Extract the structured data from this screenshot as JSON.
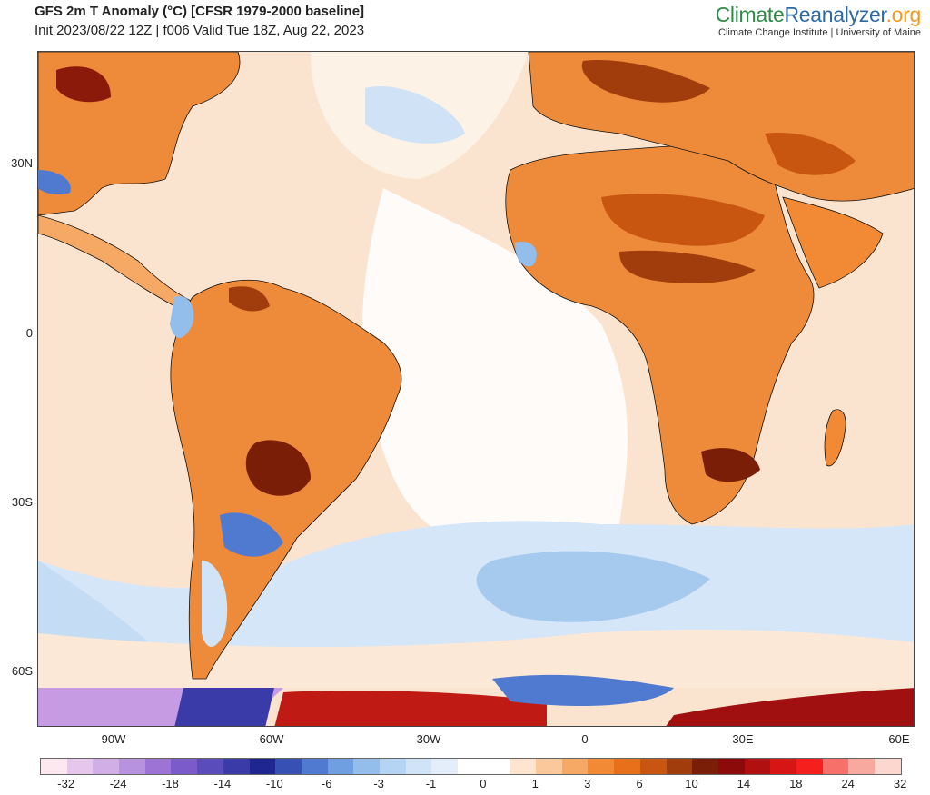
{
  "header": {
    "title": "GFS 2m T Anomaly (°C) [CFSR 1979-2000 baseline]",
    "subtitle": "Init 2023/08/22 12Z | f006 Valid Tue 18Z, Aug 22, 2023"
  },
  "brand": {
    "part1": "Climate",
    "part2": "Reanalyzer",
    "part3": ".org",
    "sub": "Climate Change Institute | University of Maine"
  },
  "axes": {
    "lat_labels": [
      "30N",
      "0",
      "30S",
      "60S"
    ],
    "lon_labels": [
      "90W",
      "60W",
      "30W",
      "0",
      "30E",
      "60E"
    ]
  },
  "colorbar": {
    "labels": [
      "-32",
      "-24",
      "-18",
      "-14",
      "-10",
      "-6",
      "-3",
      "-1",
      "0",
      "1",
      "3",
      "6",
      "10",
      "14",
      "18",
      "24",
      "32"
    ],
    "colors": [
      "#fde8ef",
      "#e6c6ea",
      "#d2aee6",
      "#b792df",
      "#9d74d6",
      "#7a5bc9",
      "#5a4cbb",
      "#3a3aa8",
      "#1f2591",
      "#3650b4",
      "#4f7ad0",
      "#6f9fe0",
      "#93bdeb",
      "#b5d3f2",
      "#d0e3f7",
      "#e3eefa",
      "#ffffff",
      "#ffffff",
      "#fde5cf",
      "#fac89b",
      "#f6a965",
      "#f28a35",
      "#e8701a",
      "#c85510",
      "#a13d0c",
      "#7a1e08",
      "#8c0a0a",
      "#b01010",
      "#d81515",
      "#f5201d",
      "#f7706a",
      "#f8a99f",
      "#fbd7cf"
    ]
  },
  "colors": {
    "ocean_warm": "#fbe4cf",
    "land_warm": "#ee8b3a",
    "hot": "#8c1a0b",
    "cold": "#9dc4ee",
    "very_cold": "#3a3aa8",
    "antarctic_purple": "#c69be4",
    "coast": "#111111"
  }
}
